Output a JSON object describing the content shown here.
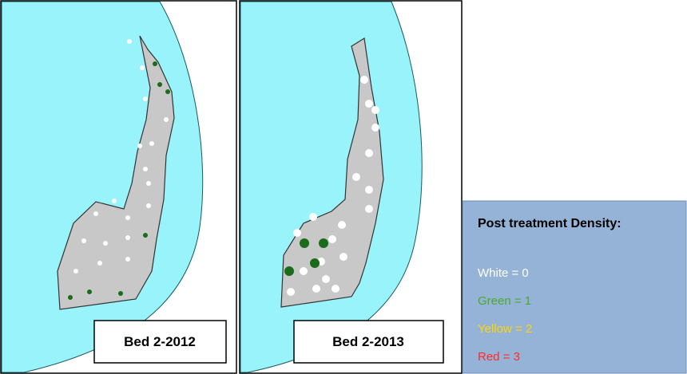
{
  "panels": [
    {
      "label": "Bed 2-2012"
    },
    {
      "label": "Bed 2-2013"
    }
  ],
  "legend": {
    "title": "Post treatment Density:",
    "items": [
      "White = 0",
      "Green = 1",
      "Yellow = 2",
      "Red = 3"
    ]
  }
}
